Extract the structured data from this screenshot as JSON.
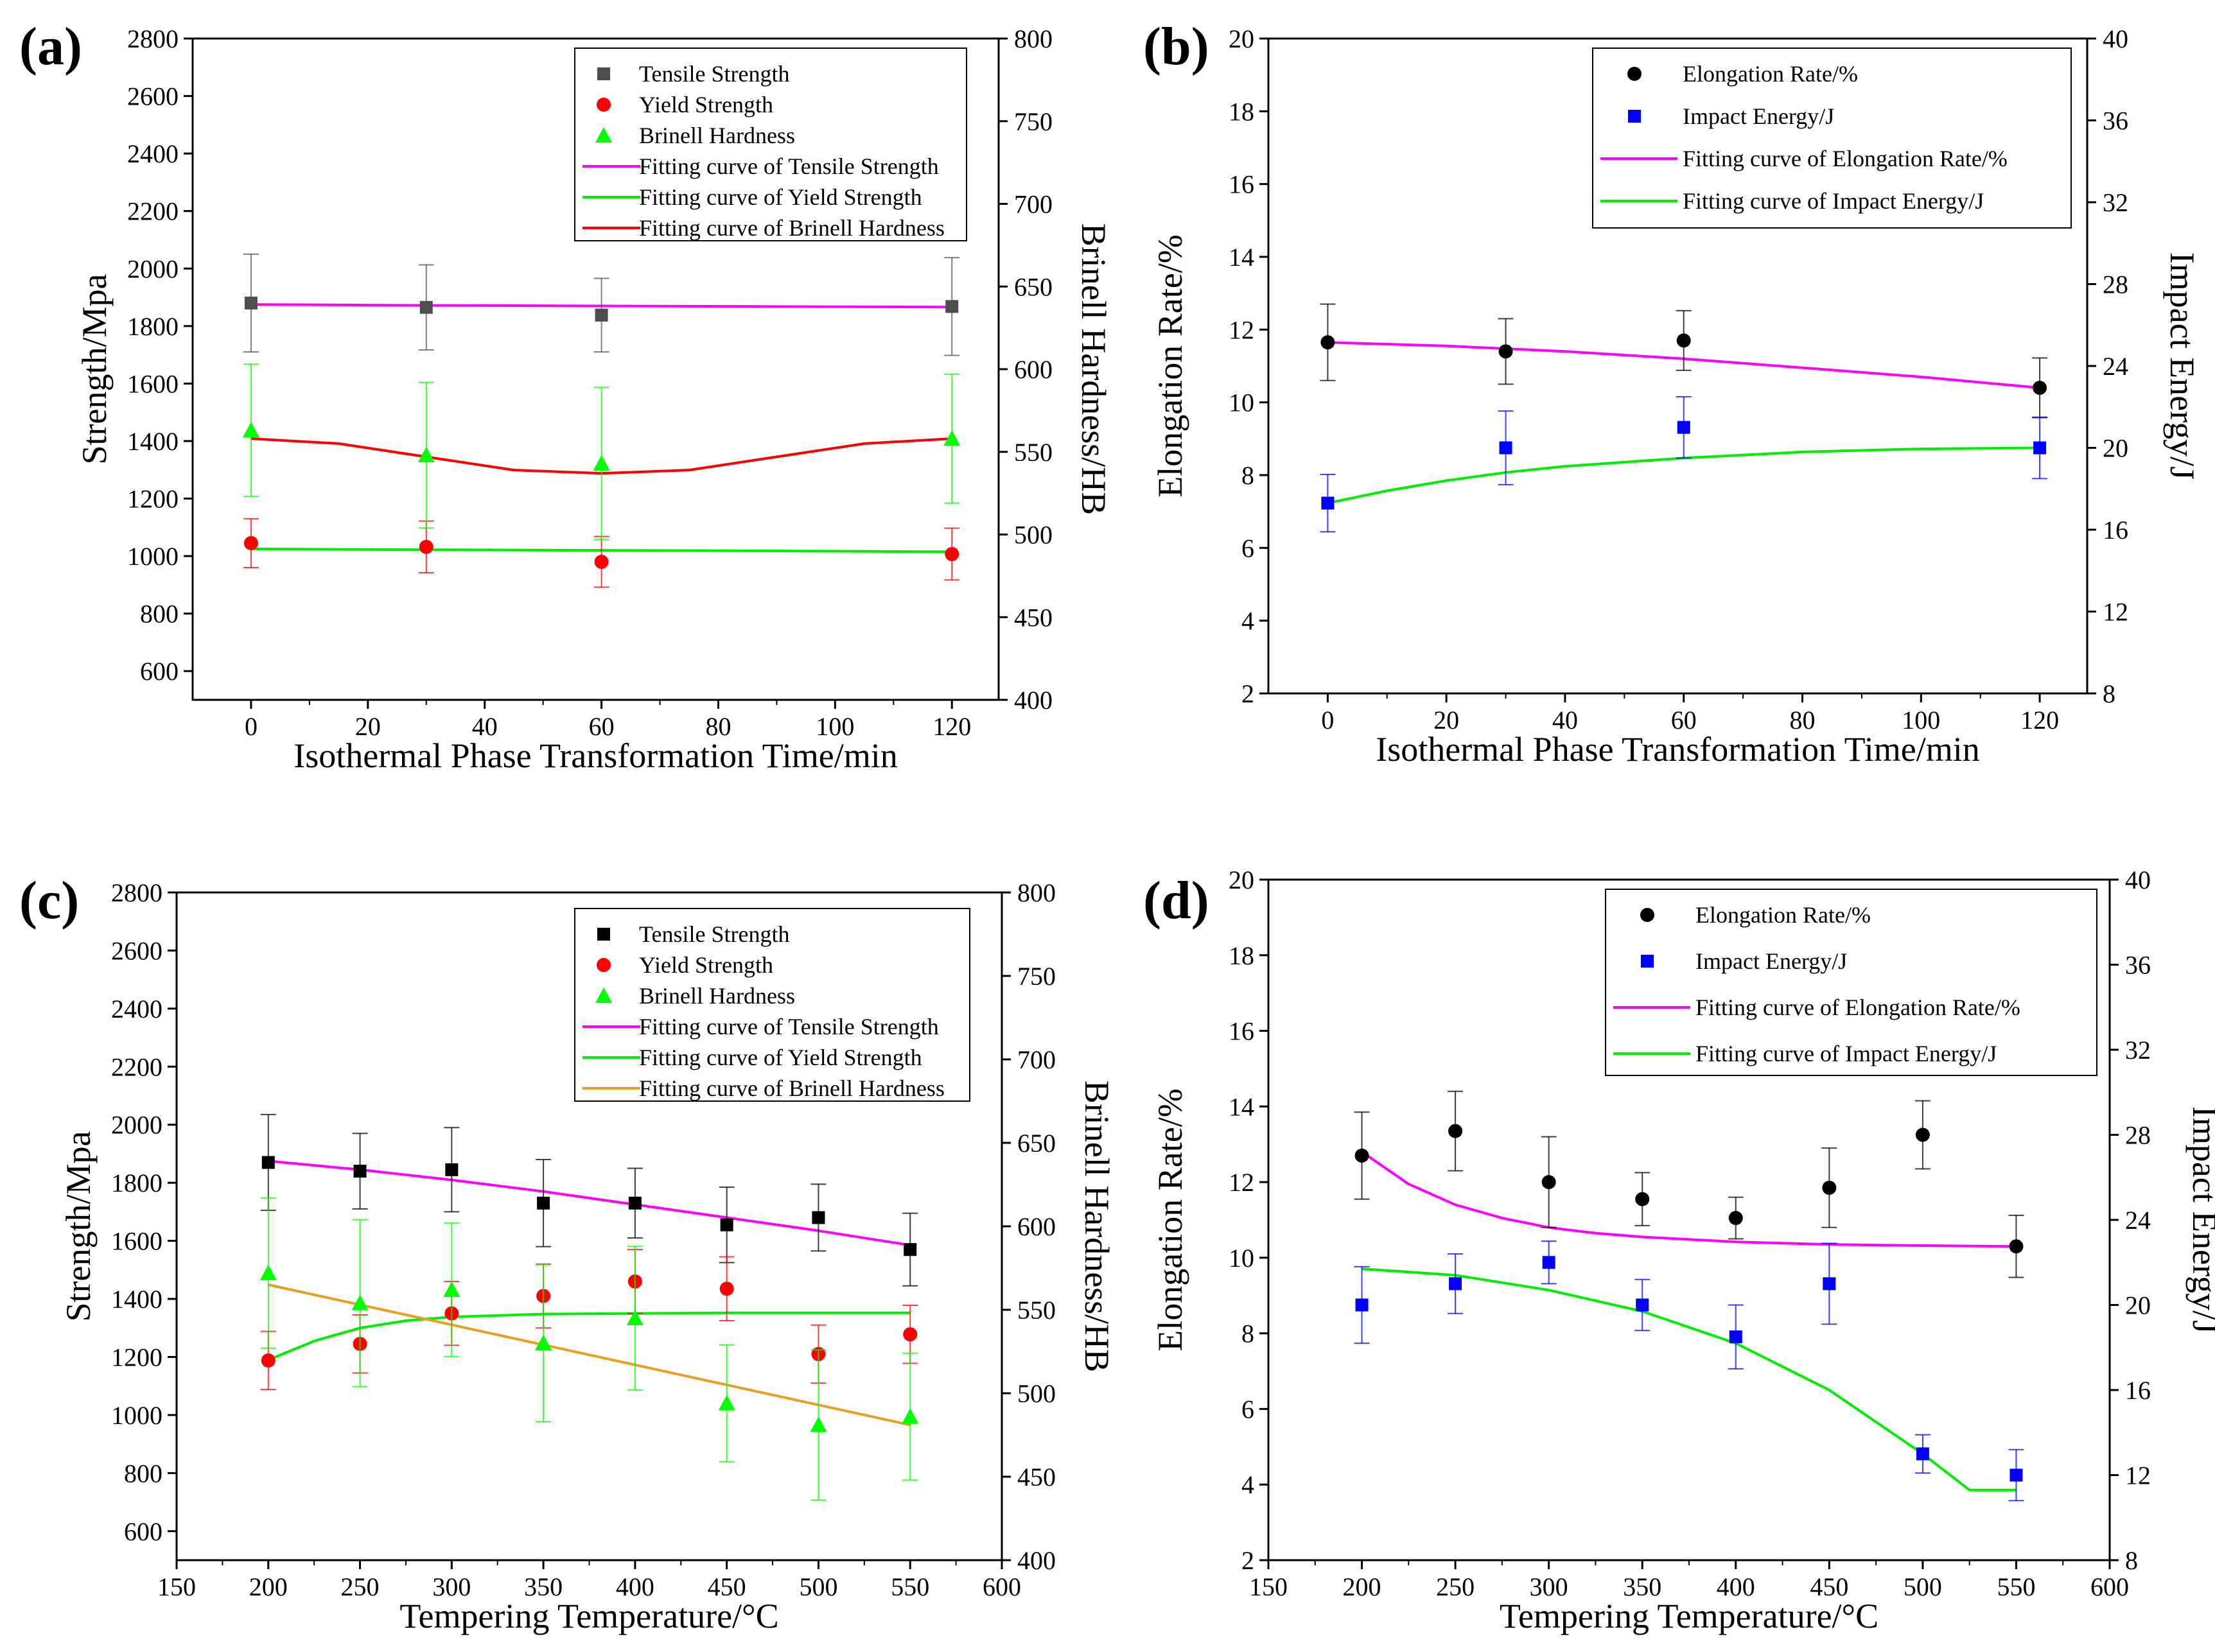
{
  "chart_data": [
    {
      "panel": "(a)",
      "type": "scatter",
      "xlabel": "Isothermal Phase Transformation Time/min",
      "ylabel": "Strength/Mpa",
      "y2label": "Brinell Hardness/HB",
      "xlim": [
        -10,
        128
      ],
      "xticks": [
        0,
        20,
        40,
        60,
        80,
        100,
        120
      ],
      "ylim": [
        500,
        2800
      ],
      "yticks": [
        600,
        800,
        1000,
        1200,
        1400,
        1600,
        1800,
        2000,
        2200,
        2400,
        2600,
        2800
      ],
      "y2lim": [
        400,
        800
      ],
      "y2ticks": [
        400,
        450,
        500,
        550,
        600,
        650,
        700,
        750,
        800
      ],
      "legend_position": "top-right",
      "series": [
        {
          "name": "Tensile Strength",
          "marker": "square",
          "color": "#4d4d4d",
          "axis": "left",
          "x": [
            0,
            30,
            60,
            120
          ],
          "y": [
            1880,
            1865,
            1838,
            1868
          ],
          "err": [
            170,
            148,
            128,
            170
          ]
        },
        {
          "name": "Yield Strength",
          "marker": "circle",
          "color": "#ff0000",
          "axis": "left",
          "x": [
            0,
            30,
            60,
            120
          ],
          "y": [
            1045,
            1032,
            980,
            1007
          ],
          "err": [
            85,
            90,
            88,
            90
          ]
        },
        {
          "name": "Brinell Hardness",
          "marker": "triangle",
          "color": "#00ff00",
          "axis": "right",
          "x": [
            0,
            30,
            60,
            120
          ],
          "y": [
            563,
            548,
            543,
            558
          ],
          "err": [
            40,
            44,
            46,
            39
          ]
        }
      ],
      "fits": [
        {
          "name": "Fitting curve of Tensile Strength",
          "color": "#ff00ff",
          "axis": "left",
          "x": [
            0,
            30,
            60,
            90,
            120
          ],
          "y": [
            1875,
            1872,
            1870,
            1868,
            1866
          ]
        },
        {
          "name": "Fitting curve of Yield Strength",
          "color": "#00ee00",
          "axis": "left",
          "x": [
            0,
            30,
            60,
            90,
            120
          ],
          "y": [
            1025,
            1022,
            1020,
            1018,
            1015
          ]
        },
        {
          "name": "Fitting curve of Brinell Hardness",
          "color": "#ff0000",
          "axis": "right",
          "x": [
            0,
            15,
            30,
            45,
            60,
            75,
            90,
            105,
            120
          ],
          "y": [
            558,
            555,
            547,
            539,
            537,
            539,
            547,
            555,
            558
          ]
        }
      ]
    },
    {
      "panel": "(b)",
      "type": "scatter",
      "xlabel": "Isothermal Phase Transformation Time/min",
      "ylabel": "Elongation Rate/%",
      "y2label": "Impact Energy/J",
      "xlim": [
        -10,
        128
      ],
      "xticks": [
        0,
        20,
        40,
        60,
        80,
        100,
        120
      ],
      "ylim": [
        2,
        20
      ],
      "yticks": [
        2,
        4,
        6,
        8,
        10,
        12,
        14,
        16,
        18,
        20
      ],
      "y2lim": [
        8,
        40
      ],
      "y2ticks": [
        8,
        12,
        16,
        20,
        24,
        28,
        32,
        36,
        40
      ],
      "legend_position": "top-right",
      "series": [
        {
          "name": "Elongation Rate/%",
          "marker": "circle",
          "color": "#000000",
          "axis": "left",
          "x": [
            0,
            30,
            60,
            120
          ],
          "y": [
            11.65,
            11.4,
            11.7,
            10.4
          ],
          "err": [
            1.05,
            0.9,
            0.82,
            0.82
          ]
        },
        {
          "name": "Impact Energy/J",
          "marker": "square",
          "color": "#0000ff",
          "axis": "right",
          "x": [
            0,
            30,
            60,
            120
          ],
          "y": [
            17.3,
            20,
            21,
            20
          ],
          "err": [
            1.4,
            1.8,
            1.5,
            1.5
          ]
        }
      ],
      "fits": [
        {
          "name": "Fitting curve of Elongation Rate/%",
          "color": "#ff00ff",
          "axis": "left",
          "x": [
            0,
            20,
            40,
            60,
            80,
            100,
            120
          ],
          "y": [
            11.65,
            11.55,
            11.4,
            11.2,
            10.95,
            10.7,
            10.4
          ]
        },
        {
          "name": "Fitting curve of Impact Energy/J",
          "color": "#00ee00",
          "axis": "right",
          "x": [
            0,
            10,
            20,
            30,
            40,
            60,
            80,
            100,
            120
          ],
          "y": [
            17.3,
            17.9,
            18.4,
            18.8,
            19.1,
            19.5,
            19.8,
            19.95,
            20
          ]
        }
      ]
    },
    {
      "panel": "(c)",
      "type": "scatter",
      "xlabel": "Tempering Temperature/°C",
      "ylabel": "Strength/Mpa",
      "y2label": "Brinell Hardness/HB",
      "xlim": [
        150,
        600
      ],
      "xticks": [
        150,
        200,
        250,
        300,
        350,
        400,
        450,
        500,
        550,
        600
      ],
      "ylim": [
        500,
        2800
      ],
      "yticks": [
        600,
        800,
        1000,
        1200,
        1400,
        1600,
        1800,
        2000,
        2200,
        2400,
        2600,
        2800
      ],
      "y2lim": [
        400,
        800
      ],
      "y2ticks": [
        400,
        450,
        500,
        550,
        600,
        650,
        700,
        750,
        800
      ],
      "legend_position": "top-right",
      "series": [
        {
          "name": "Tensile Strength",
          "marker": "square",
          "color": "#000000",
          "axis": "left",
          "x": [
            200,
            250,
            300,
            350,
            400,
            450,
            500,
            550
          ],
          "y": [
            1870,
            1840,
            1845,
            1730,
            1730,
            1655,
            1680,
            1570
          ],
          "err": [
            165,
            130,
            145,
            150,
            120,
            130,
            115,
            125
          ]
        },
        {
          "name": "Yield Strength",
          "marker": "circle",
          "color": "#ff0000",
          "axis": "left",
          "x": [
            200,
            250,
            300,
            350,
            400,
            450,
            500,
            550
          ],
          "y": [
            1188,
            1245,
            1350,
            1410,
            1460,
            1435,
            1210,
            1278
          ],
          "err": [
            100,
            100,
            110,
            110,
            110,
            110,
            100,
            100
          ]
        },
        {
          "name": "Brinell Hardness",
          "marker": "triangle",
          "color": "#00ff00",
          "axis": "right",
          "x": [
            200,
            250,
            300,
            350,
            400,
            450,
            500,
            550
          ],
          "y": [
            572,
            554,
            562,
            530,
            545,
            494,
            481,
            486
          ],
          "err": [
            45,
            50,
            40,
            47,
            43,
            35,
            45,
            38
          ]
        }
      ],
      "fits": [
        {
          "name": "Fitting curve of Tensile Strength",
          "color": "#ff00ff",
          "axis": "left",
          "x": [
            200,
            250,
            300,
            350,
            400,
            450,
            500,
            550
          ],
          "y": [
            1875,
            1845,
            1810,
            1770,
            1725,
            1680,
            1635,
            1585
          ]
        },
        {
          "name": "Fitting curve of Yield Strength",
          "color": "#00ee00",
          "axis": "left",
          "x": [
            200,
            225,
            250,
            275,
            300,
            350,
            400,
            450,
            500,
            550
          ],
          "y": [
            1190,
            1255,
            1300,
            1325,
            1338,
            1348,
            1350,
            1352,
            1352,
            1352
          ]
        },
        {
          "name": "Fitting curve of Brinell Hardness",
          "color": "#e8a020",
          "axis": "right",
          "x": [
            200,
            550
          ],
          "y": [
            565,
            481
          ]
        }
      ]
    },
    {
      "panel": "(d)",
      "type": "scatter",
      "xlabel": "Tempering Temperature/°C",
      "ylabel": "Elongation Rate/%",
      "y2label": "Impact Energy/J",
      "xlim": [
        150,
        600
      ],
      "xticks": [
        150,
        200,
        250,
        300,
        350,
        400,
        450,
        500,
        550,
        600
      ],
      "ylim": [
        2,
        20
      ],
      "yticks": [
        2,
        4,
        6,
        8,
        10,
        12,
        14,
        16,
        18,
        20
      ],
      "y2lim": [
        8,
        40
      ],
      "y2ticks": [
        8,
        12,
        16,
        20,
        24,
        28,
        32,
        36,
        40
      ],
      "legend_position": "top-right",
      "series": [
        {
          "name": "Elongation Rate/%",
          "marker": "circle",
          "color": "#000000",
          "axis": "left",
          "x": [
            200,
            250,
            300,
            350,
            400,
            450,
            500,
            550
          ],
          "y": [
            12.7,
            13.35,
            12.0,
            11.55,
            11.05,
            11.85,
            13.25,
            10.3
          ],
          "err": [
            1.15,
            1.05,
            1.2,
            0.7,
            0.55,
            1.05,
            0.9,
            0.82
          ]
        },
        {
          "name": "Impact Energy/J",
          "marker": "square",
          "color": "#0000ff",
          "axis": "right",
          "x": [
            200,
            250,
            300,
            350,
            400,
            450,
            500,
            550
          ],
          "y": [
            20,
            21,
            22,
            20,
            18.5,
            21,
            13,
            12
          ],
          "err": [
            1.8,
            1.4,
            1.0,
            1.2,
            1.5,
            1.9,
            0.9,
            1.2
          ]
        }
      ],
      "fits": [
        {
          "name": "Fitting curve of Elongation Rate/%",
          "color": "#ff00ff",
          "axis": "left",
          "x": [
            200,
            225,
            250,
            275,
            300,
            325,
            350,
            400,
            450,
            500,
            550
          ],
          "y": [
            12.8,
            11.95,
            11.4,
            11.05,
            10.8,
            10.65,
            10.55,
            10.42,
            10.35,
            10.32,
            10.3
          ]
        },
        {
          "name": "Fitting curve of Impact Energy/J",
          "color": "#00ee00",
          "axis": "right",
          "x": [
            200,
            250,
            300,
            350,
            400,
            450,
            500,
            525,
            550
          ],
          "y": [
            21.7,
            21.4,
            20.7,
            19.7,
            18.2,
            16.0,
            13.0,
            11.3,
            11.3
          ]
        }
      ]
    }
  ]
}
